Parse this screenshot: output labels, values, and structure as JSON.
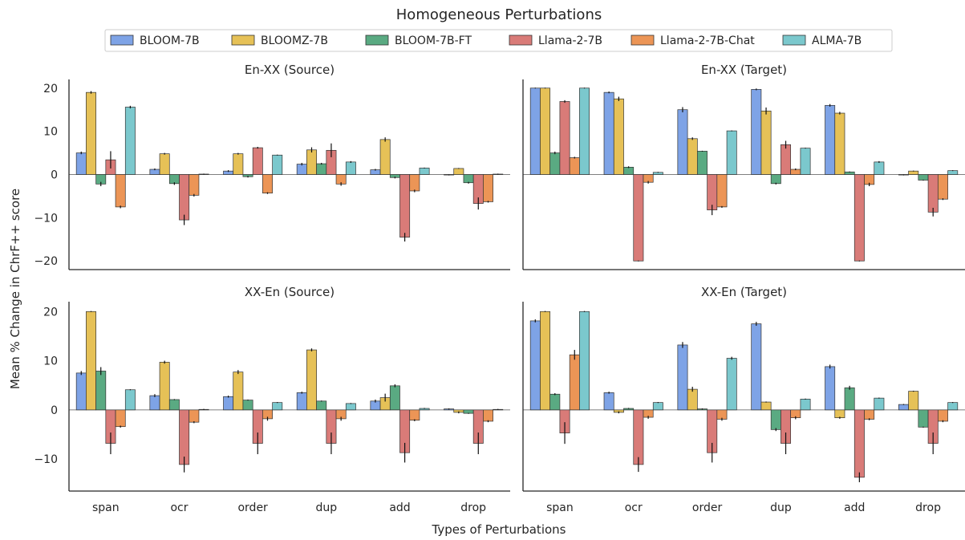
{
  "figure": {
    "title": "Homogeneous Perturbations",
    "xlabel": "Types of Perturbations",
    "ylabel": "Mean % Change in ChrF++ score"
  },
  "legend": {
    "placement": "top-center",
    "entries": [
      {
        "name": "BLOOM-7B",
        "color": "#7ea3e6"
      },
      {
        "name": "BLOOMZ-7B",
        "color": "#e6c157"
      },
      {
        "name": "BLOOM-7B-FT",
        "color": "#5aaa82"
      },
      {
        "name": "Llama-2-7B",
        "color": "#d97b78"
      },
      {
        "name": "Llama-2-7B-Chat",
        "color": "#ec9556"
      },
      {
        "name": "ALMA-7B",
        "color": "#7bc8cd"
      }
    ]
  },
  "chart_data": [
    {
      "type": "bar",
      "title": "En-XX (Source)",
      "categories": [
        "span",
        "ocr",
        "order",
        "dup",
        "add",
        "drop"
      ],
      "ylim": [
        -22,
        22
      ],
      "yticks": [
        -20,
        -10,
        0,
        10,
        20
      ],
      "grid": false,
      "series": [
        {
          "name": "BLOOM-7B",
          "values": [
            5,
            1.2,
            0.8,
            2.4,
            1.1,
            -0.1
          ],
          "err": [
            0.3,
            0.2,
            0.2,
            0.3,
            0.2,
            0.1
          ]
        },
        {
          "name": "BLOOMZ-7B",
          "values": [
            19,
            4.8,
            4.8,
            5.7,
            8.1,
            1.4
          ],
          "err": [
            0.3,
            0.2,
            0.2,
            0.6,
            0.5,
            0.1
          ]
        },
        {
          "name": "BLOOM-7B-FT",
          "values": [
            -2.2,
            -2.1,
            -0.5,
            2.5,
            -0.7,
            -1.9
          ],
          "err": [
            0.5,
            0.3,
            0.2,
            0.2,
            0.2,
            0.2
          ]
        },
        {
          "name": "Llama-2-7B",
          "values": [
            3.4,
            -10.5,
            6.2,
            5.6,
            -14.5,
            -6.7
          ],
          "err": [
            2.0,
            1.2,
            0.2,
            1.6,
            1.0,
            1.4
          ]
        },
        {
          "name": "Llama-2-7B-Chat",
          "values": [
            -7.5,
            -4.8,
            -4.3,
            -2.2,
            -3.8,
            -6.3
          ],
          "err": [
            0.3,
            0.3,
            0.2,
            0.4,
            0.3,
            0.2
          ]
        },
        {
          "name": "ALMA-7B",
          "values": [
            15.6,
            0.1,
            4.5,
            2.9,
            1.5,
            0.1
          ],
          "err": [
            0.3,
            0.1,
            0.1,
            0.2,
            0.1,
            0.1
          ]
        }
      ]
    },
    {
      "type": "bar",
      "title": "En-XX (Target)",
      "categories": [
        "span",
        "ocr",
        "order",
        "dup",
        "add",
        "drop"
      ],
      "ylim": [
        -22,
        22
      ],
      "yticks": [
        -20,
        -10,
        0,
        10,
        20
      ],
      "grid": false,
      "series": [
        {
          "name": "BLOOM-7B",
          "values": [
            20,
            19,
            15,
            19.7,
            16,
            -0.1
          ],
          "err": [
            0.1,
            0.2,
            0.6,
            0.2,
            0.3,
            0.1
          ]
        },
        {
          "name": "BLOOMZ-7B",
          "values": [
            20,
            17.5,
            8.3,
            14.7,
            14.2,
            0.8
          ],
          "err": [
            0.1,
            0.5,
            0.3,
            0.8,
            0.3,
            0.1
          ]
        },
        {
          "name": "BLOOM-7B-FT",
          "values": [
            5,
            1.7,
            5.4,
            -2.1,
            0.6,
            -1.3
          ],
          "err": [
            0.3,
            0.2,
            0.1,
            0.2,
            0.1,
            0.1
          ]
        },
        {
          "name": "Llama-2-7B",
          "values": [
            16.9,
            -20,
            -8.2,
            6.9,
            -20,
            -8.7
          ],
          "err": [
            0.3,
            0.1,
            1.2,
            0.9,
            0.1,
            1.0
          ]
        },
        {
          "name": "Llama-2-7B-Chat",
          "values": [
            3.9,
            -1.8,
            -7.5,
            1.2,
            -2.3,
            -5.7
          ],
          "err": [
            0.2,
            0.3,
            0.2,
            0.2,
            0.4,
            0.2
          ]
        },
        {
          "name": "ALMA-7B",
          "values": [
            20,
            0.5,
            10.1,
            6.1,
            2.9,
            0.9
          ],
          "err": [
            0.1,
            0.1,
            0.1,
            0.1,
            0.2,
            0.1
          ]
        }
      ]
    },
    {
      "type": "bar",
      "title": "XX-En (Source)",
      "categories": [
        "span",
        "ocr",
        "order",
        "dup",
        "add",
        "drop"
      ],
      "ylim": [
        -16.5,
        22
      ],
      "yticks": [
        -10,
        0,
        10,
        20
      ],
      "grid": false,
      "series": [
        {
          "name": "BLOOM-7B",
          "values": [
            7.5,
            2.9,
            2.7,
            3.5,
            1.8,
            0.2
          ],
          "err": [
            0.4,
            0.3,
            0.2,
            0.2,
            0.3,
            0.1
          ]
        },
        {
          "name": "BLOOMZ-7B",
          "values": [
            20,
            9.7,
            7.7,
            12.2,
            2.5,
            -0.5
          ],
          "err": [
            0.1,
            0.3,
            0.4,
            0.3,
            0.8,
            0.2
          ]
        },
        {
          "name": "BLOOM-7B-FT",
          "values": [
            7.9,
            2.1,
            2.0,
            1.8,
            4.9,
            -0.7
          ],
          "err": [
            0.8,
            0.1,
            0.1,
            0.1,
            0.3,
            0.1
          ]
        },
        {
          "name": "Llama-2-7B",
          "values": [
            -6.8,
            -11.1,
            -6.8,
            -6.8,
            -8.7,
            -6.8
          ],
          "err": [
            2.2,
            1.6,
            2.2,
            2.2,
            2.0,
            2.2
          ]
        },
        {
          "name": "Llama-2-7B-Chat",
          "values": [
            -3.4,
            -2.5,
            -1.8,
            -1.8,
            -2.1,
            -2.3
          ],
          "err": [
            0.2,
            0.2,
            0.4,
            0.4,
            0.2,
            0.2
          ]
        },
        {
          "name": "ALMA-7B",
          "values": [
            4.1,
            0.1,
            1.5,
            1.3,
            0.3,
            0.1
          ],
          "err": [
            0.1,
            0.1,
            0.1,
            0.1,
            0.1,
            0.1
          ]
        }
      ]
    },
    {
      "type": "bar",
      "title": "XX-En (Target)",
      "categories": [
        "span",
        "ocr",
        "order",
        "dup",
        "add",
        "drop"
      ],
      "ylim": [
        -16.5,
        22
      ],
      "yticks": [
        -10,
        0,
        10,
        20
      ],
      "grid": false,
      "series": [
        {
          "name": "BLOOM-7B",
          "values": [
            18.1,
            3.5,
            13.2,
            17.5,
            8.8,
            1.1
          ],
          "err": [
            0.3,
            0.2,
            0.6,
            0.4,
            0.4,
            0.1
          ]
        },
        {
          "name": "BLOOMZ-7B",
          "values": [
            20,
            -0.5,
            4.2,
            1.6,
            -1.6,
            3.8
          ],
          "err": [
            0.1,
            0.2,
            0.5,
            0.1,
            0.2,
            0.1
          ]
        },
        {
          "name": "BLOOM-7B-FT",
          "values": [
            3.2,
            0.3,
            0.2,
            -4,
            4.5,
            -3.5
          ],
          "err": [
            0.2,
            0.1,
            0.1,
            0.3,
            0.4,
            0.1
          ]
        },
        {
          "name": "Llama-2-7B",
          "values": [
            -4.7,
            -11.1,
            -8.7,
            -6.8,
            -13.7,
            -6.8
          ],
          "err": [
            2.2,
            1.5,
            2.0,
            2.2,
            1.0,
            2.2
          ]
        },
        {
          "name": "Llama-2-7B-Chat",
          "values": [
            11.2,
            -1.5,
            -1.9,
            -1.6,
            -1.9,
            -2.3
          ],
          "err": [
            1.0,
            0.3,
            0.3,
            0.3,
            0.2,
            0.2
          ]
        },
        {
          "name": "ALMA-7B",
          "values": [
            20,
            1.5,
            10.5,
            2.2,
            2.4,
            1.5
          ],
          "err": [
            0.1,
            0.1,
            0.3,
            0.1,
            0.1,
            0.1
          ]
        }
      ]
    }
  ]
}
